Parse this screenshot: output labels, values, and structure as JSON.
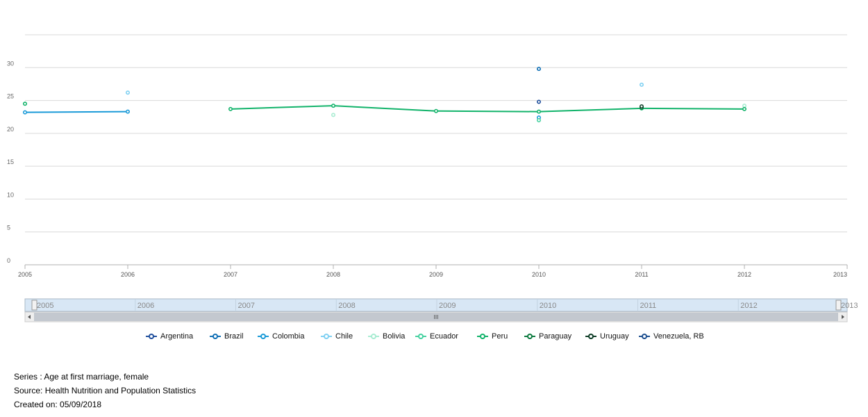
{
  "chart_data": {
    "type": "line",
    "x": [
      2005,
      2006,
      2007,
      2008,
      2009,
      2010,
      2011,
      2012,
      2013
    ],
    "x_ticks": [
      "2005",
      "2006",
      "2007",
      "2008",
      "2009",
      "2010",
      "2011",
      "2012",
      "2013"
    ],
    "y_ticks": [
      "0",
      "5",
      "10",
      "15",
      "20",
      "25",
      "30"
    ],
    "ylim": [
      0,
      35
    ],
    "xlim": [
      2005,
      2013
    ],
    "grid": true,
    "legend_position": "bottom",
    "series": [
      {
        "name": "Argentina",
        "color": "#1f4e9c",
        "values": [
          null,
          null,
          null,
          null,
          null,
          24.8,
          null,
          null,
          null
        ]
      },
      {
        "name": "Brazil",
        "color": "#0f6fb5",
        "values": [
          null,
          null,
          null,
          null,
          null,
          29.8,
          null,
          null,
          null
        ]
      },
      {
        "name": "Colombia",
        "color": "#1a9ad8",
        "values": [
          23.2,
          23.3,
          null,
          null,
          null,
          22.4,
          null,
          null,
          null
        ]
      },
      {
        "name": "Chile",
        "color": "#7fd0f2",
        "values": [
          null,
          26.2,
          null,
          null,
          null,
          null,
          27.4,
          null,
          null
        ]
      },
      {
        "name": "Bolivia",
        "color": "#a8ecd2",
        "values": [
          null,
          null,
          null,
          22.8,
          null,
          null,
          null,
          24.2,
          null
        ]
      },
      {
        "name": "Ecuador",
        "color": "#45d1a0",
        "values": [
          null,
          null,
          null,
          null,
          null,
          22.0,
          null,
          null,
          null
        ]
      },
      {
        "name": "Peru",
        "color": "#11b36a",
        "values": [
          24.5,
          null,
          23.7,
          24.2,
          23.4,
          23.3,
          23.8,
          23.7,
          null
        ]
      },
      {
        "name": "Paraguay",
        "color": "#0b7a3e",
        "values": [
          null,
          null,
          null,
          null,
          null,
          null,
          23.9,
          null,
          null
        ]
      },
      {
        "name": "Uruguay",
        "color": "#0b3b24",
        "values": [
          null,
          null,
          null,
          null,
          null,
          null,
          24.1,
          null,
          null
        ]
      },
      {
        "name": "Venezuela, RB",
        "color": "#1d4f8f",
        "values": [
          null,
          null,
          null,
          null,
          null,
          null,
          null,
          null,
          null
        ]
      }
    ]
  },
  "navigator": {
    "labels": [
      "2005",
      "2006",
      "2007",
      "2008",
      "2009",
      "2010",
      "2011",
      "2012",
      "2013"
    ],
    "thumb_label": "III"
  },
  "footer": {
    "series": "Series : Age at first marriage, female",
    "source": "Source: Health Nutrition and Population Statistics",
    "created": "Created on: 05/09/2018"
  }
}
